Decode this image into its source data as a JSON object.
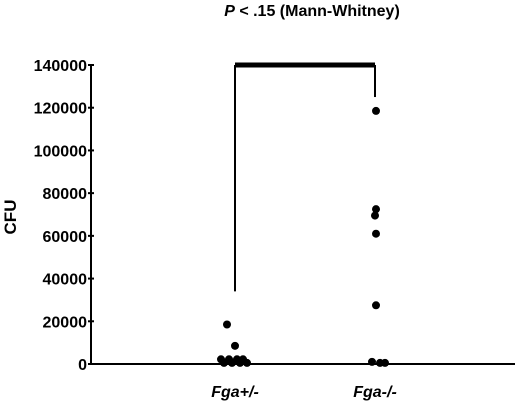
{
  "chart_data": {
    "type": "scatter",
    "title": {
      "p_symbol": "P",
      "rest": " < .15 (Mann-Whitney)"
    },
    "ylabel": "CFU",
    "xlabel": "",
    "ylim": [
      0,
      140000
    ],
    "yticks": [
      0,
      20000,
      40000,
      60000,
      80000,
      100000,
      120000,
      140000
    ],
    "ytick_labels": [
      "0",
      "20000",
      "40000",
      "60000",
      "80000",
      "100000",
      "120000",
      "140000"
    ],
    "categories": [
      "Fga+/-",
      "Fga-/-"
    ],
    "series": [
      {
        "category": "Fga+/-",
        "points": [
          {
            "offset": -0.08,
            "value": 18500
          },
          {
            "offset": 0.0,
            "value": 8500
          },
          {
            "offset": -0.14,
            "value": 2200
          },
          {
            "offset": -0.06,
            "value": 2200
          },
          {
            "offset": 0.02,
            "value": 2200
          },
          {
            "offset": 0.08,
            "value": 2200
          },
          {
            "offset": -0.11,
            "value": 500
          },
          {
            "offset": -0.03,
            "value": 500
          },
          {
            "offset": 0.05,
            "value": 500
          },
          {
            "offset": 0.12,
            "value": 500
          }
        ]
      },
      {
        "category": "Fga-/-",
        "points": [
          {
            "offset": 0.01,
            "value": 118500
          },
          {
            "offset": 0.01,
            "value": 72500
          },
          {
            "offset": 0.0,
            "value": 69500
          },
          {
            "offset": 0.01,
            "value": 61000
          },
          {
            "offset": 0.01,
            "value": 27500
          },
          {
            "offset": -0.03,
            "value": 1000
          },
          {
            "offset": 0.05,
            "value": 500
          },
          {
            "offset": 0.1,
            "value": 500
          }
        ]
      }
    ],
    "comparison_bracket": {
      "from": "Fga+/-",
      "to": "Fga-/-",
      "top_value": 140000,
      "left_bottom_value": 34000,
      "right_bottom_value": 125000
    },
    "grid": false,
    "legend": "none"
  }
}
